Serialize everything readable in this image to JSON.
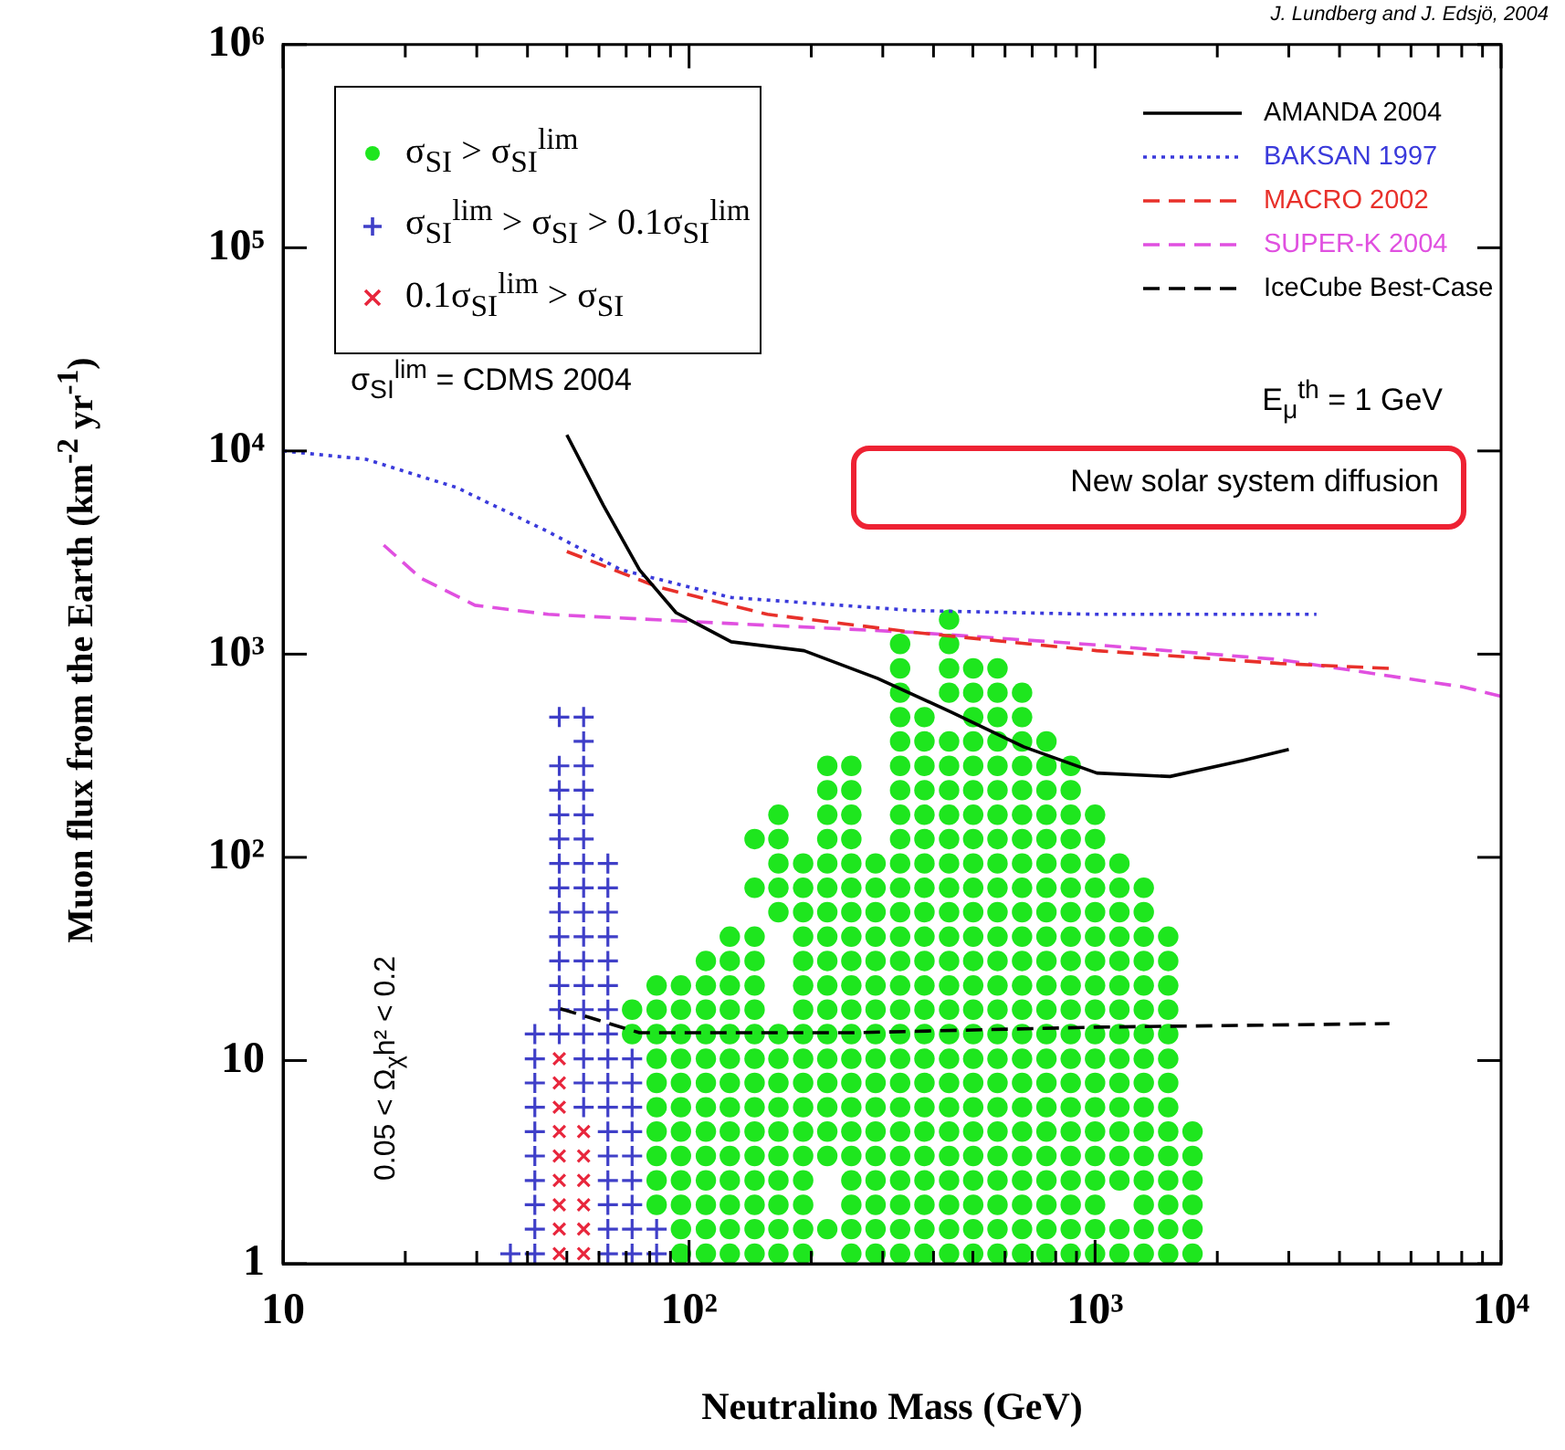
{
  "chart_data": {
    "type": "scatter",
    "xlabel": "Neutralino Mass (GeV)",
    "ylabel": "Muon flux from the Earth (km$^{-2}$ yr$^{-1}$)",
    "annotations": [
      "J. Lundberg and J. Edsjö, 2004",
      "σ$_{SI}$$^{lim}$ = CDMS 2004",
      "E$_{μ}$$^{th}$ = 1 GeV",
      "New solar system diffusion",
      "0.05 < Ω$_{χ}$h² < 0.2"
    ],
    "log": "xy",
    "xlim": [
      10,
      10000
    ],
    "ylim": [
      1,
      1000000
    ],
    "xticks": [
      10,
      {
        "value": 20,
        "label": null
      },
      {
        "value": 30,
        "label": null
      },
      {
        "value": 40,
        "label": null
      },
      {
        "value": 50,
        "label": null
      },
      {
        "value": 60,
        "label": null
      },
      {
        "value": 70,
        "label": null
      },
      {
        "value": 80,
        "label": null
      },
      {
        "value": 90,
        "label": null
      },
      {
        "value": 100,
        "label": "10²"
      },
      {
        "value": 200,
        "label": null
      },
      {
        "value": 300,
        "label": null
      },
      {
        "value": 400,
        "label": null
      },
      {
        "value": 500,
        "label": null
      },
      {
        "value": 600,
        "label": null
      },
      {
        "value": 700,
        "label": null
      },
      {
        "value": 800,
        "label": null
      },
      {
        "value": 900,
        "label": null
      },
      {
        "value": 1000,
        "label": "10³"
      },
      {
        "value": 2000,
        "label": null
      },
      {
        "value": 3000,
        "label": null
      },
      {
        "value": 4000,
        "label": null
      },
      {
        "value": 5000,
        "label": null
      },
      {
        "value": 6000,
        "label": null
      },
      {
        "value": 7000,
        "label": null
      },
      {
        "value": 8000,
        "label": null
      },
      {
        "value": 9000,
        "label": null
      },
      {
        "value": 10000,
        "label": "10⁴"
      }
    ],
    "yticks": [
      1,
      10,
      {
        "value": 100,
        "label": "10²"
      },
      {
        "value": 1000,
        "label": "10³"
      },
      {
        "value": 10000,
        "label": "10⁴"
      },
      {
        "value": 100000,
        "label": "10⁵"
      },
      {
        "value": 1000000,
        "label": "10⁶"
      }
    ],
    "legend": "top",
    "grid": false,
    "series": [
      {
        "name": "σ$_{SI}$ > σ$_{SI}$$^{lim}$",
        "color": "#1ee61e",
        "marker": "circle",
        "x": [
          72.4,
          72.4,
          83.2,
          83.2,
          83.2,
          83.2,
          83.2,
          83.2,
          83.2,
          83.2,
          83.2,
          83.2,
          95.5,
          95.5,
          95.5,
          95.5,
          95.5,
          95.5,
          95.5,
          95.5,
          95.5,
          95.5,
          95.5,
          95.5,
          110,
          110,
          110,
          110,
          110,
          110,
          110,
          110,
          110,
          110,
          110,
          110,
          110,
          126,
          126,
          126,
          126,
          126,
          126,
          126,
          126,
          126,
          126,
          126,
          126,
          126,
          126,
          145,
          145,
          145,
          145,
          145,
          145,
          145,
          145,
          145,
          145,
          145,
          145,
          145,
          145,
          145,
          145,
          166,
          166,
          166,
          166,
          166,
          166,
          166,
          166,
          166,
          166,
          166,
          166,
          166,
          166,
          166,
          191,
          191,
          191,
          191,
          191,
          191,
          191,
          191,
          191,
          191,
          191,
          191,
          191,
          191,
          191,
          191,
          191,
          219,
          219,
          219,
          219,
          219,
          219,
          219,
          219,
          219,
          219,
          219,
          219,
          219,
          219,
          219,
          219,
          219,
          219,
          251,
          251,
          251,
          251,
          251,
          251,
          251,
          251,
          251,
          251,
          251,
          251,
          251,
          251,
          251,
          251,
          251,
          251,
          251,
          251,
          251,
          288,
          288,
          288,
          288,
          288,
          288,
          288,
          288,
          288,
          288,
          288,
          288,
          288,
          288,
          288,
          288,
          288,
          331,
          331,
          331,
          331,
          331,
          331,
          331,
          331,
          331,
          331,
          331,
          331,
          331,
          331,
          331,
          331,
          331,
          331,
          331,
          331,
          331,
          331,
          331,
          331,
          331,
          331,
          380,
          380,
          380,
          380,
          380,
          380,
          380,
          380,
          380,
          380,
          380,
          380,
          380,
          380,
          380,
          380,
          380,
          380,
          380,
          380,
          380,
          380,
          380,
          437,
          437,
          437,
          437,
          437,
          437,
          437,
          437,
          437,
          437,
          437,
          437,
          437,
          437,
          437,
          437,
          437,
          437,
          437,
          437,
          437,
          437,
          437,
          437,
          437,
          437,
          501,
          501,
          501,
          501,
          501,
          501,
          501,
          501,
          501,
          501,
          501,
          501,
          501,
          501,
          501,
          501,
          501,
          501,
          501,
          501,
          501,
          501,
          501,
          501,
          501,
          575,
          575,
          575,
          575,
          575,
          575,
          575,
          575,
          575,
          575,
          575,
          575,
          575,
          575,
          575,
          575,
          575,
          575,
          575,
          575,
          575,
          575,
          575,
          575,
          575,
          661,
          661,
          661,
          661,
          661,
          661,
          661,
          661,
          661,
          661,
          661,
          661,
          661,
          661,
          661,
          661,
          661,
          661,
          661,
          661,
          661,
          661,
          661,
          661,
          759,
          759,
          759,
          759,
          759,
          759,
          759,
          759,
          759,
          759,
          759,
          759,
          759,
          759,
          759,
          759,
          759,
          759,
          759,
          759,
          759,
          759,
          871,
          871,
          871,
          871,
          871,
          871,
          871,
          871,
          871,
          871,
          871,
          871,
          871,
          871,
          871,
          871,
          871,
          871,
          871,
          871,
          871,
          1000,
          1000,
          1000,
          1000,
          1000,
          1000,
          1000,
          1000,
          1000,
          1000,
          1000,
          1000,
          1000,
          1000,
          1000,
          1000,
          1000,
          1000,
          1000,
          1148,
          1148,
          1148,
          1148,
          1148,
          1148,
          1148,
          1148,
          1148,
          1148,
          1148,
          1148,
          1148,
          1148,
          1148,
          1148,
          1318,
          1318,
          1318,
          1318,
          1318,
          1318,
          1318,
          1318,
          1318,
          1318,
          1318,
          1318,
          1318,
          1318,
          1318,
          1318,
          1514,
          1514,
          1514,
          1514,
          1514,
          1514,
          1514,
          1514,
          1514,
          1514,
          1514,
          1514,
          1514,
          1514,
          1738,
          1738,
          1738,
          1738,
          1738,
          1738
        ],
        "values": [
          13.5,
          17.8,
          1.95,
          2.57,
          3.39,
          4.47,
          5.89,
          7.76,
          10.2,
          13.5,
          17.8,
          23.4,
          1.12,
          1.48,
          1.95,
          2.57,
          3.39,
          4.47,
          5.89,
          7.76,
          10.2,
          13.5,
          17.8,
          23.4,
          1.12,
          1.48,
          1.95,
          2.57,
          3.39,
          4.47,
          5.89,
          7.76,
          10.2,
          13.5,
          17.8,
          23.4,
          30.9,
          1.12,
          1.48,
          1.95,
          2.57,
          3.39,
          4.47,
          5.89,
          7.76,
          10.2,
          13.5,
          17.8,
          23.4,
          30.9,
          40.7,
          1.12,
          1.48,
          1.95,
          2.57,
          3.39,
          4.47,
          5.89,
          7.76,
          10.2,
          13.5,
          17.8,
          23.4,
          30.9,
          40.7,
          70.8,
          123,
          1.12,
          1.48,
          1.95,
          2.57,
          3.39,
          4.47,
          5.89,
          7.76,
          10.2,
          13.5,
          53.7,
          70.8,
          93.3,
          123,
          162,
          1.12,
          1.48,
          1.95,
          2.57,
          3.39,
          4.47,
          5.89,
          7.76,
          10.2,
          13.5,
          17.8,
          23.4,
          30.9,
          40.7,
          53.7,
          70.8,
          93.3,
          1.48,
          3.39,
          4.47,
          5.89,
          7.76,
          10.2,
          13.5,
          17.8,
          23.4,
          30.9,
          40.7,
          53.7,
          70.8,
          93.3,
          123,
          162,
          214,
          282,
          1.12,
          1.48,
          1.95,
          2.57,
          3.39,
          4.47,
          5.89,
          7.76,
          10.2,
          13.5,
          17.8,
          23.4,
          30.9,
          40.7,
          53.7,
          70.8,
          93.3,
          123,
          162,
          214,
          282,
          1.12,
          1.48,
          1.95,
          2.57,
          3.39,
          4.47,
          5.89,
          7.76,
          10.2,
          13.5,
          17.8,
          23.4,
          30.9,
          40.7,
          53.7,
          70.8,
          93.3,
          1.12,
          1.48,
          1.95,
          2.57,
          3.39,
          4.47,
          5.89,
          7.76,
          10.2,
          13.5,
          17.8,
          23.4,
          30.9,
          40.7,
          53.7,
          70.8,
          93.3,
          123,
          162,
          214,
          282,
          372,
          490,
          646,
          851,
          1122,
          1.12,
          1.48,
          1.95,
          2.57,
          3.39,
          4.47,
          5.89,
          7.76,
          10.2,
          13.5,
          17.8,
          23.4,
          30.9,
          40.7,
          53.7,
          70.8,
          93.3,
          123,
          162,
          214,
          282,
          372,
          490,
          1.12,
          1.48,
          1.95,
          2.57,
          3.39,
          4.47,
          5.89,
          7.76,
          10.2,
          13.5,
          17.8,
          23.4,
          30.9,
          40.7,
          53.7,
          70.8,
          93.3,
          123,
          162,
          214,
          282,
          372,
          646,
          851,
          1122,
          1479,
          1.12,
          1.48,
          1.95,
          2.57,
          3.39,
          4.47,
          5.89,
          7.76,
          10.2,
          13.5,
          17.8,
          23.4,
          30.9,
          40.7,
          53.7,
          70.8,
          93.3,
          123,
          162,
          214,
          282,
          372,
          490,
          646,
          851,
          1.12,
          1.48,
          1.95,
          2.57,
          3.39,
          4.47,
          5.89,
          7.76,
          10.2,
          13.5,
          17.8,
          23.4,
          30.9,
          40.7,
          53.7,
          70.8,
          93.3,
          123,
          162,
          214,
          282,
          372,
          490,
          646,
          851,
          1.12,
          1.48,
          1.95,
          2.57,
          3.39,
          4.47,
          5.89,
          7.76,
          10.2,
          13.5,
          17.8,
          23.4,
          30.9,
          40.7,
          53.7,
          70.8,
          93.3,
          123,
          162,
          214,
          282,
          372,
          490,
          646,
          1.12,
          1.48,
          1.95,
          2.57,
          3.39,
          4.47,
          5.89,
          7.76,
          10.2,
          13.5,
          17.8,
          23.4,
          30.9,
          40.7,
          53.7,
          70.8,
          93.3,
          123,
          162,
          214,
          282,
          372,
          1.12,
          1.48,
          1.95,
          2.57,
          3.39,
          4.47,
          5.89,
          7.76,
          10.2,
          13.5,
          17.8,
          23.4,
          30.9,
          40.7,
          53.7,
          70.8,
          93.3,
          123,
          162,
          214,
          282,
          1.12,
          1.48,
          1.95,
          2.57,
          3.39,
          4.47,
          5.89,
          7.76,
          10.2,
          13.5,
          17.8,
          23.4,
          30.9,
          40.7,
          53.7,
          70.8,
          93.3,
          123,
          162,
          1.12,
          1.48,
          2.57,
          3.39,
          4.47,
          5.89,
          7.76,
          10.2,
          13.5,
          17.8,
          23.4,
          30.9,
          40.7,
          53.7,
          70.8,
          93.3,
          1.12,
          1.48,
          1.95,
          2.57,
          3.39,
          4.47,
          5.89,
          7.76,
          10.2,
          13.5,
          17.8,
          23.4,
          30.9,
          40.7,
          53.7,
          70.8,
          1.12,
          1.48,
          1.95,
          2.57,
          3.39,
          4.47,
          5.89,
          7.76,
          10.2,
          13.5,
          17.8,
          23.4,
          30.9,
          40.7,
          1.12,
          1.48,
          1.95,
          2.57,
          3.39,
          4.47
        ]
      },
      {
        "name": "σ$_{SI}$$^{lim}$ > σ$_{SI}$ > 0.1σ$_{SI}$$^{lim}$",
        "color": "#3f3fc8",
        "marker": "cross",
        "x": [
          36.3,
          41.7,
          41.7,
          41.7,
          41.7,
          41.7,
          41.7,
          41.7,
          41.7,
          41.7,
          41.7,
          47.9,
          47.9,
          47.9,
          47.9,
          47.9,
          47.9,
          47.9,
          47.9,
          47.9,
          47.9,
          47.9,
          47.9,
          47.9,
          55.0,
          55.0,
          55.0,
          55.0,
          55.0,
          55.0,
          55.0,
          55.0,
          55.0,
          55.0,
          55.0,
          55.0,
          55.0,
          55.0,
          55.0,
          55.0,
          55.0,
          63.1,
          63.1,
          63.1,
          63.1,
          63.1,
          63.1,
          63.1,
          63.1,
          63.1,
          63.1,
          63.1,
          63.1,
          63.1,
          63.1,
          63.1,
          63.1,
          63.1,
          72.4,
          72.4,
          72.4,
          72.4,
          72.4,
          72.4,
          72.4,
          72.4,
          72.4,
          83.2,
          83.2
        ],
        "values": [
          1.12,
          1.12,
          1.48,
          1.95,
          2.57,
          3.39,
          4.47,
          5.89,
          7.76,
          10.2,
          13.5,
          13.5,
          17.8,
          23.4,
          30.9,
          40.7,
          53.7,
          70.8,
          93.3,
          123,
          162,
          214,
          282,
          490,
          5.89,
          7.76,
          10.2,
          13.5,
          17.8,
          23.4,
          30.9,
          40.7,
          53.7,
          70.8,
          93.3,
          123,
          162,
          214,
          282,
          372,
          490,
          1.12,
          1.48,
          1.95,
          2.57,
          3.39,
          4.47,
          5.89,
          7.76,
          10.2,
          13.5,
          17.8,
          23.4,
          30.9,
          40.7,
          53.7,
          70.8,
          93.3,
          1.12,
          1.48,
          1.95,
          2.57,
          3.39,
          4.47,
          5.89,
          7.76,
          10.2,
          1.12,
          1.48
        ]
      },
      {
        "name": "0.1σ$_{SI}$$^{lim}$ > σ$_{SI}$",
        "color": "#e8263c",
        "marker": "x",
        "x": [
          47.9,
          47.9,
          47.9,
          47.9,
          47.9,
          47.9,
          47.9,
          47.9,
          47.9,
          55.0,
          55.0,
          55.0,
          55.0,
          55.0,
          55.0
        ],
        "values": [
          1.12,
          1.48,
          1.95,
          2.57,
          3.39,
          4.47,
          5.89,
          7.76,
          10.2,
          1.12,
          1.48,
          1.95,
          2.57,
          3.39,
          4.47
        ]
      },
      {
        "type": "line",
        "name": "AMANDA 2004",
        "color": "#000000",
        "line_style": "solid",
        "x": [
          50,
          61.5,
          75.5,
          92.9,
          127,
          192,
          291,
          441,
          667,
          1010,
          1530,
          2320,
          3000
        ],
        "values": [
          12000,
          5400,
          2600,
          1600,
          1150,
          1040,
          760,
          520,
          350,
          260,
          250,
          300,
          340
        ]
      },
      {
        "type": "line",
        "name": "BAKSAN 1997",
        "color": "#3a3adb",
        "line_style": "dotted",
        "x": [
          10,
          16,
          26.8,
          45,
          68,
          127,
          358,
          1010,
          3510
        ],
        "values": [
          10000,
          9100,
          6600,
          4000,
          2600,
          1900,
          1640,
          1570,
          1570
        ]
      },
      {
        "type": "line",
        "name": "MACRO 2002",
        "color": "#e8302a",
        "line_style": "dashed",
        "x": [
          50,
          83.8,
          156,
          358,
          1010,
          2850,
          5310
        ],
        "values": [
          3200,
          2140,
          1570,
          1280,
          1040,
          900,
          850
        ]
      },
      {
        "type": "line",
        "name": "SUPER-K 2004",
        "color": "#e050e0",
        "line_style": "dashed",
        "x": [
          17.7,
          21.8,
          29.7,
          45,
          127,
          358,
          1010,
          2850,
          8040,
          10000
        ],
        "values": [
          3440,
          2370,
          1740,
          1570,
          1415,
          1280,
          1110,
          940,
          690,
          620
        ]
      },
      {
        "type": "line",
        "name": "IceCube Best-Case",
        "color": "#000000",
        "line_style": "dashed",
        "x": [
          48.2,
          75.5,
          251,
          1010,
          5310
        ],
        "values": [
          18,
          13.7,
          13.7,
          14.6,
          15.2
        ]
      }
    ]
  }
}
